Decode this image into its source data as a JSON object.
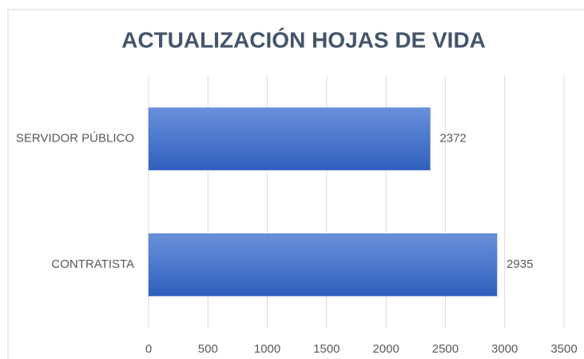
{
  "chart_data": {
    "type": "bar",
    "orientation": "horizontal",
    "title": "ACTUALIZACIÓN HOJAS DE VIDA",
    "categories": [
      "SERVIDOR PÚBLICO",
      "CONTRATISTA"
    ],
    "values": [
      2372,
      2935
    ],
    "color": "#4472c4",
    "xlim": [
      0,
      3500
    ],
    "xticks": [
      0,
      500,
      1000,
      1500,
      2000,
      2500,
      3000,
      3500
    ],
    "grid": true
  }
}
